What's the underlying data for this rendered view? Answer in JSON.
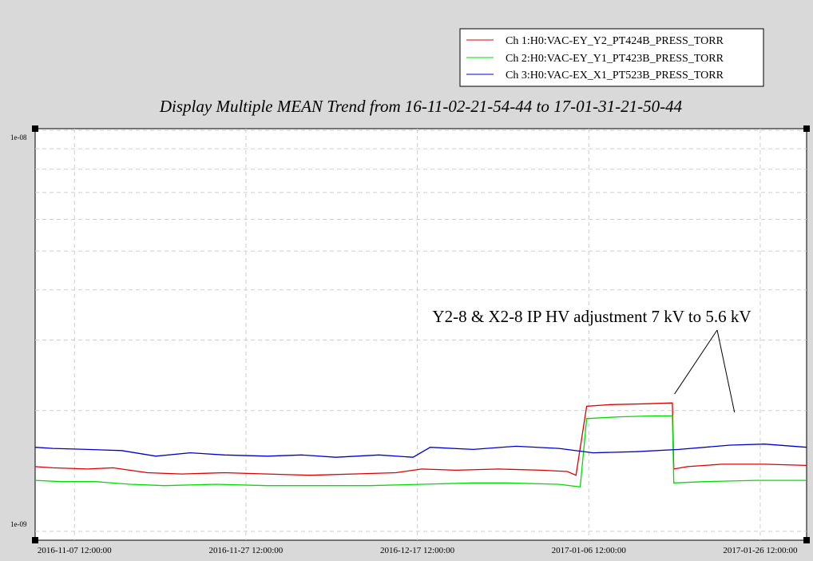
{
  "chart_data": {
    "type": "line",
    "title": "Display Multiple MEAN Trend from 16-11-02-21-54-44 to 17-01-31-21-50-44",
    "xlabel": "",
    "ylabel": "",
    "x_range": [
      "2016-11-02 21:54:44",
      "2017-01-31 21:50:44"
    ],
    "ylim": [
      9.5e-10,
      1.01e-08
    ],
    "yscale": "log",
    "grid": true,
    "legend_placement": "top-right",
    "x_ticks": [
      "2016-11-07 12:00:00",
      "2016-11-27 12:00:00",
      "2016-12-17 12:00:00",
      "2017-01-06 12:00:00",
      "2017-01-26 12:00:00"
    ],
    "y_ticks": [
      "1e-08",
      "1e-09"
    ],
    "annotation": {
      "text": "Y2-8 & X2-8 IP HV adjustment 7 kV to 5.6 kV",
      "targets": [
        "2017-01-16 12:00:00",
        "2017-01-23 12:00:00"
      ]
    },
    "series": [
      {
        "name": "Ch 1:H0:VAC-EY_Y2_PT424B_PRESS_TORR",
        "color": "#dd0000",
        "points": [
          [
            "2016-11-02 21:54:44",
            1.45e-09
          ],
          [
            "2016-11-05 00:00:00",
            1.44e-09
          ],
          [
            "2016-11-09 00:00:00",
            1.43e-09
          ],
          [
            "2016-11-12 00:00:00",
            1.44e-09
          ],
          [
            "2016-11-16 00:00:00",
            1.4e-09
          ],
          [
            "2016-11-20 00:00:00",
            1.39e-09
          ],
          [
            "2016-11-25 00:00:00",
            1.4e-09
          ],
          [
            "2016-11-30 00:00:00",
            1.39e-09
          ],
          [
            "2016-12-05 00:00:00",
            1.38e-09
          ],
          [
            "2016-12-10 00:00:00",
            1.39e-09
          ],
          [
            "2016-12-15 00:00:00",
            1.4e-09
          ],
          [
            "2016-12-18 00:00:00",
            1.43e-09
          ],
          [
            "2016-12-22 00:00:00",
            1.42e-09
          ],
          [
            "2016-12-27 00:00:00",
            1.43e-09
          ],
          [
            "2017-01-01 00:00:00",
            1.42e-09
          ],
          [
            "2017-01-04 00:00:00",
            1.41e-09
          ],
          [
            "2017-01-05 00:00:00",
            1.38e-09
          ],
          [
            "2017-01-06 06:00:00",
            2.05e-09
          ],
          [
            "2017-01-09 00:00:00",
            2.07e-09
          ],
          [
            "2017-01-13 00:00:00",
            2.08e-09
          ],
          [
            "2017-01-16 06:00:00",
            2.09e-09
          ],
          [
            "2017-01-16 10:00:00",
            1.43e-09
          ],
          [
            "2017-01-18 00:00:00",
            1.45e-09
          ],
          [
            "2017-01-22 00:00:00",
            1.47e-09
          ],
          [
            "2017-01-27 00:00:00",
            1.47e-09
          ],
          [
            "2017-01-31 21:50:44",
            1.46e-09
          ]
        ]
      },
      {
        "name": "Ch 2:H0:VAC-EY_Y1_PT423B_PRESS_TORR",
        "color": "#00dd00",
        "points": [
          [
            "2016-11-02 21:54:44",
            1.34e-09
          ],
          [
            "2016-11-06 00:00:00",
            1.33e-09
          ],
          [
            "2016-11-10 00:00:00",
            1.33e-09
          ],
          [
            "2016-11-14 00:00:00",
            1.31e-09
          ],
          [
            "2016-11-18 00:00:00",
            1.3e-09
          ],
          [
            "2016-11-24 00:00:00",
            1.31e-09
          ],
          [
            "2016-11-30 00:00:00",
            1.3e-09
          ],
          [
            "2016-12-05 00:00:00",
            1.3e-09
          ],
          [
            "2016-12-12 00:00:00",
            1.3e-09
          ],
          [
            "2016-12-18 00:00:00",
            1.31e-09
          ],
          [
            "2016-12-24 00:00:00",
            1.32e-09
          ],
          [
            "2016-12-28 00:00:00",
            1.32e-09
          ],
          [
            "2017-01-03 00:00:00",
            1.31e-09
          ],
          [
            "2017-01-05 12:00:00",
            1.29e-09
          ],
          [
            "2017-01-06 06:00:00",
            1.91e-09
          ],
          [
            "2017-01-10 00:00:00",
            1.93e-09
          ],
          [
            "2017-01-14 00:00:00",
            1.94e-09
          ],
          [
            "2017-01-16 06:00:00",
            1.94e-09
          ],
          [
            "2017-01-16 10:00:00",
            1.32e-09
          ],
          [
            "2017-01-20 00:00:00",
            1.33e-09
          ],
          [
            "2017-01-26 00:00:00",
            1.34e-09
          ],
          [
            "2017-01-31 21:50:44",
            1.34e-09
          ]
        ]
      },
      {
        "name": "Ch 3:H0:VAC-EX_X1_PT523B_PRESS_TORR",
        "color": "#0000cc",
        "points": [
          [
            "2016-11-02 21:54:44",
            1.62e-09
          ],
          [
            "2016-11-05 00:00:00",
            1.61e-09
          ],
          [
            "2016-11-09 00:00:00",
            1.6e-09
          ],
          [
            "2016-11-13 00:00:00",
            1.59e-09
          ],
          [
            "2016-11-17 00:00:00",
            1.54e-09
          ],
          [
            "2016-11-21 00:00:00",
            1.57e-09
          ],
          [
            "2016-11-25 00:00:00",
            1.55e-09
          ],
          [
            "2016-11-30 00:00:00",
            1.54e-09
          ],
          [
            "2016-12-04 00:00:00",
            1.55e-09
          ],
          [
            "2016-12-08 00:00:00",
            1.53e-09
          ],
          [
            "2016-12-13 00:00:00",
            1.55e-09
          ],
          [
            "2016-12-17 00:00:00",
            1.53e-09
          ],
          [
            "2016-12-19 00:00:00",
            1.62e-09
          ],
          [
            "2016-12-24 00:00:00",
            1.6e-09
          ],
          [
            "2016-12-29 00:00:00",
            1.63e-09
          ],
          [
            "2017-01-03 00:00:00",
            1.61e-09
          ],
          [
            "2017-01-07 00:00:00",
            1.57e-09
          ],
          [
            "2017-01-12 00:00:00",
            1.58e-09
          ],
          [
            "2017-01-17 00:00:00",
            1.6e-09
          ],
          [
            "2017-01-23 00:00:00",
            1.64e-09
          ],
          [
            "2017-01-27 00:00:00",
            1.65e-09
          ],
          [
            "2017-01-31 21:50:44",
            1.62e-09
          ]
        ]
      }
    ]
  }
}
